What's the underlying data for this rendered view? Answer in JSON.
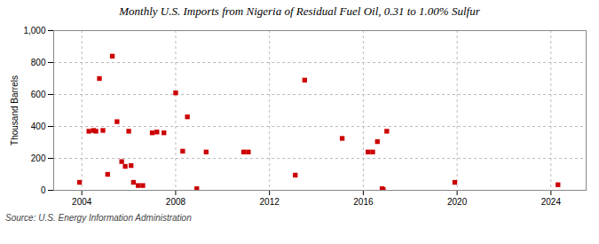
{
  "chart_data": {
    "type": "scatter",
    "title": "Monthly U.S. Imports from Nigeria of Residual Fuel Oil, 0.31 to 1.00% Sulfur",
    "ylabel": "Thousand Barrels",
    "source": "Source: U.S. Energy Information Administration",
    "color": "#cc0000",
    "marker": "square",
    "grid": true,
    "xlim": [
      2002.8,
      2025.5
    ],
    "ylim": [
      0,
      1000
    ],
    "xticks": [
      2004,
      2008,
      2012,
      2016,
      2020,
      2024
    ],
    "yticks": [
      0,
      200,
      400,
      600,
      800,
      {
        "value": 1000,
        "label": "1,000"
      }
    ],
    "x": [
      2003.9,
      2004.3,
      2004.5,
      2004.6,
      2004.75,
      2004.9,
      2005.1,
      2005.3,
      2005.5,
      2005.7,
      2005.85,
      2006.0,
      2006.1,
      2006.2,
      2006.4,
      2006.6,
      2007.0,
      2007.2,
      2007.5,
      2008.0,
      2008.3,
      2008.5,
      2008.9,
      2009.3,
      2010.9,
      2011.1,
      2013.1,
      2013.5,
      2015.1,
      2016.2,
      2016.4,
      2016.6,
      2016.8,
      2016.85,
      2017.0,
      2019.9,
      2024.3
    ],
    "values": [
      50,
      370,
      375,
      370,
      700,
      375,
      100,
      840,
      430,
      180,
      150,
      370,
      155,
      50,
      30,
      30,
      360,
      365,
      360,
      610,
      245,
      460,
      10,
      240,
      240,
      240,
      95,
      690,
      325,
      240,
      240,
      305,
      10,
      5,
      370,
      50,
      35
    ]
  }
}
